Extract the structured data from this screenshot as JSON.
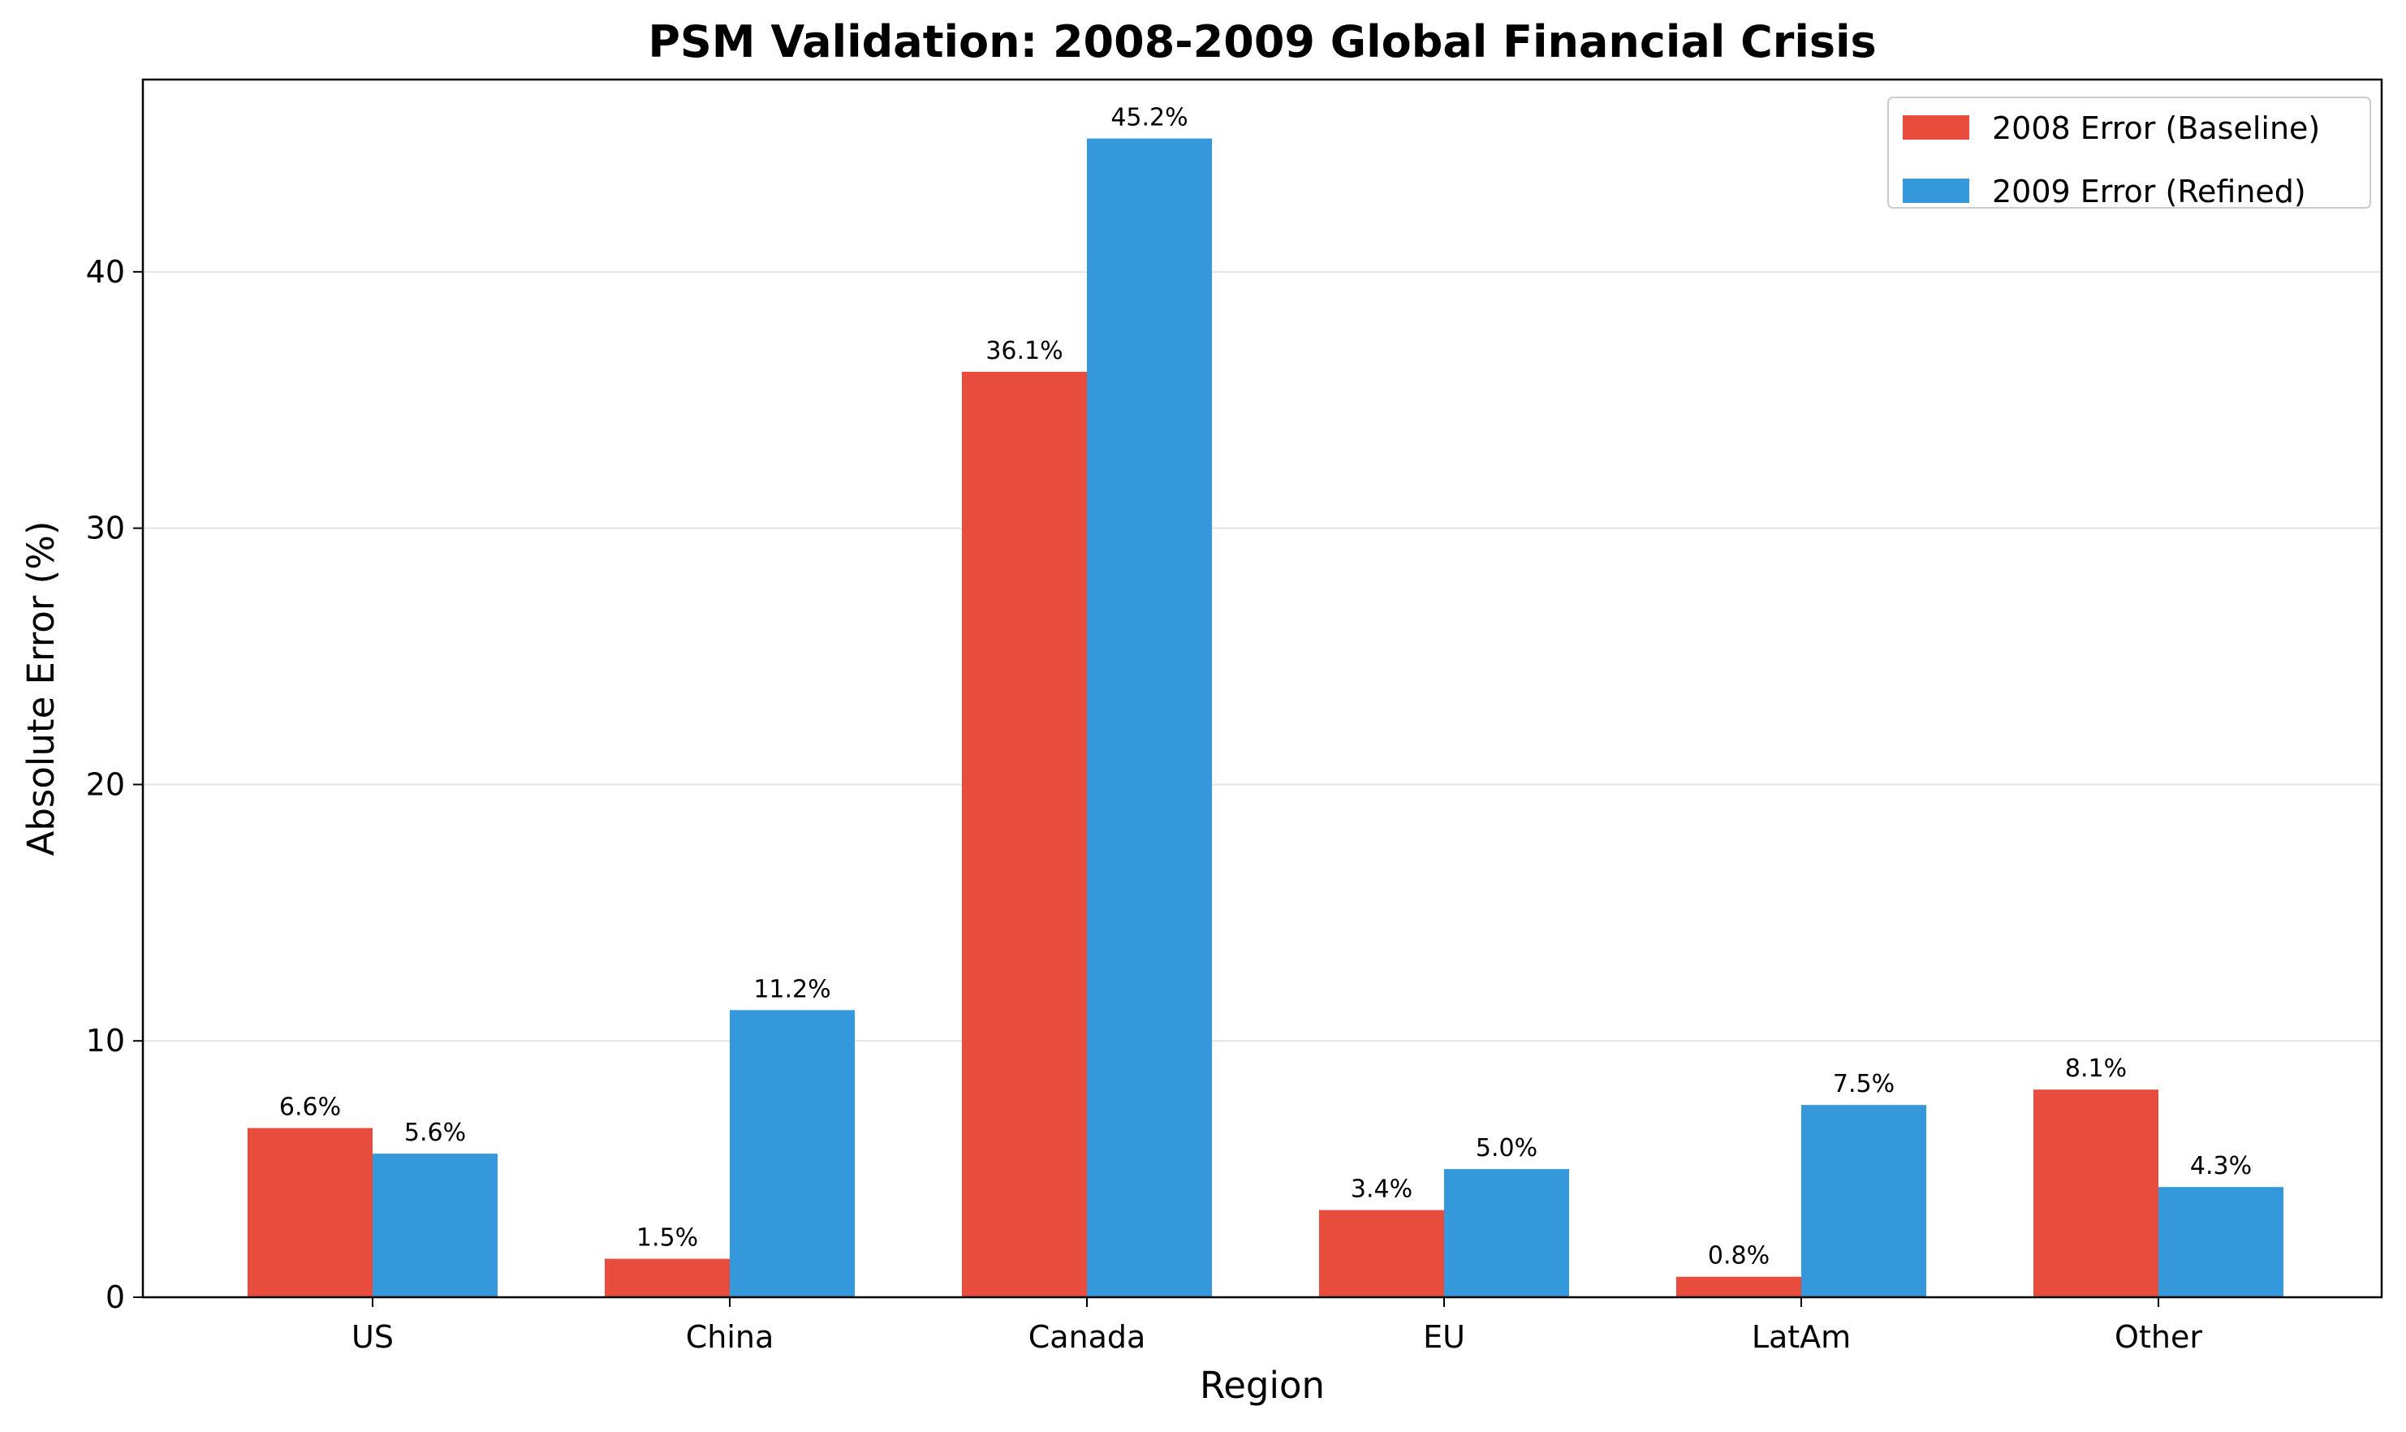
{
  "chart_data": {
    "type": "bar",
    "title": "PSM Validation: 2008-2009 Global Financial Crisis",
    "xlabel": "Region",
    "ylabel": "Absolute Error (%)",
    "categories": [
      "US",
      "China",
      "Canada",
      "EU",
      "LatAm",
      "Other"
    ],
    "series": [
      {
        "name": "2008 Error (Baseline)",
        "color": "#e74c3c",
        "values": [
          6.6,
          1.5,
          36.1,
          3.4,
          0.8,
          8.1
        ],
        "labels": [
          "6.6%",
          "1.5%",
          "36.1%",
          "3.4%",
          "0.8%",
          "8.1%"
        ]
      },
      {
        "name": "2009 Error (Refined)",
        "color": "#3498db",
        "values": [
          5.6,
          11.2,
          45.2,
          5.0,
          7.5,
          4.3
        ],
        "labels": [
          "5.6%",
          "11.2%",
          "45.2%",
          "5.0%",
          "7.5%",
          "4.3%"
        ]
      }
    ],
    "ylim": [
      0,
      47.5
    ],
    "yticks": [
      0,
      10,
      20,
      30,
      40
    ],
    "ytick_labels": [
      "0",
      "10",
      "20",
      "30",
      "40"
    ],
    "grid": "horizontal",
    "legend_position": "top-right"
  }
}
